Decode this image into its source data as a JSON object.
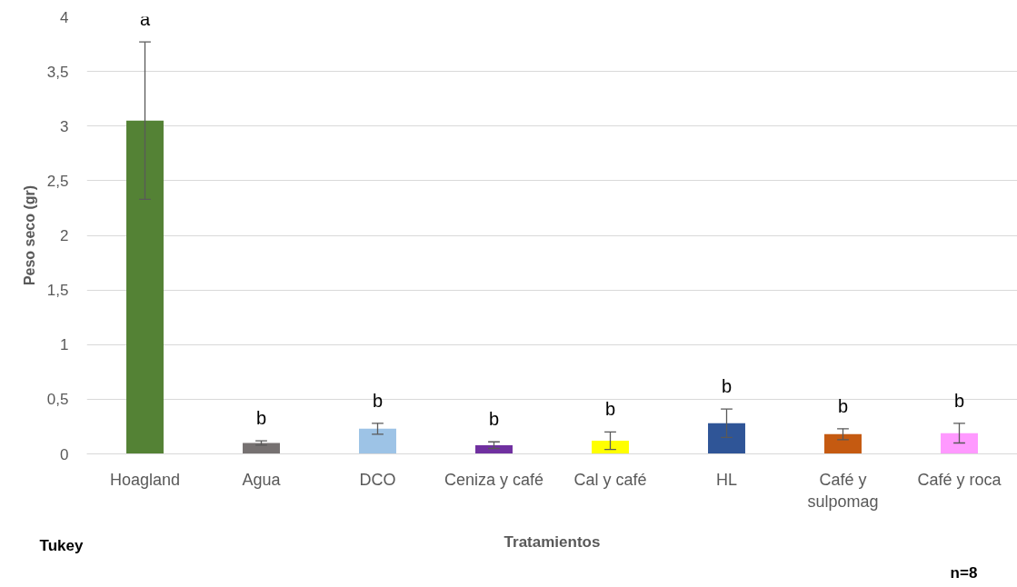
{
  "chart_data": {
    "type": "bar",
    "xlabel": "Tratamientos",
    "ylabel": "Peso seco (gr)",
    "categories": [
      "Hoagland",
      "Agua",
      "DCO",
      "Ceniza y café",
      "Cal y café",
      "HL",
      "Café y sulpomag",
      "Café y roca"
    ],
    "values": [
      3.05,
      0.1,
      0.23,
      0.08,
      0.12,
      0.28,
      0.18,
      0.19
    ],
    "errors": [
      0.72,
      0.02,
      0.05,
      0.03,
      0.08,
      0.13,
      0.05,
      0.09
    ],
    "colors": [
      "#548235",
      "#767171",
      "#9dc3e6",
      "#7030a0",
      "#ffff00",
      "#2f5597",
      "#c55a11",
      "#ff99ff"
    ],
    "ylim": [
      0,
      4
    ],
    "yticks": [
      0,
      {
        "value": 0.5,
        "label": "0,5"
      },
      1,
      {
        "value": 1.5,
        "label": "1,5"
      },
      2,
      {
        "value": 2.5,
        "label": "2,5"
      },
      3,
      {
        "value": 3.5,
        "label": "3,5"
      },
      4
    ],
    "grid": "y",
    "annotations": [
      "a",
      "b",
      "b",
      "b",
      "b",
      "b",
      "b",
      "b",
      "Tukey",
      "n=8"
    ]
  }
}
